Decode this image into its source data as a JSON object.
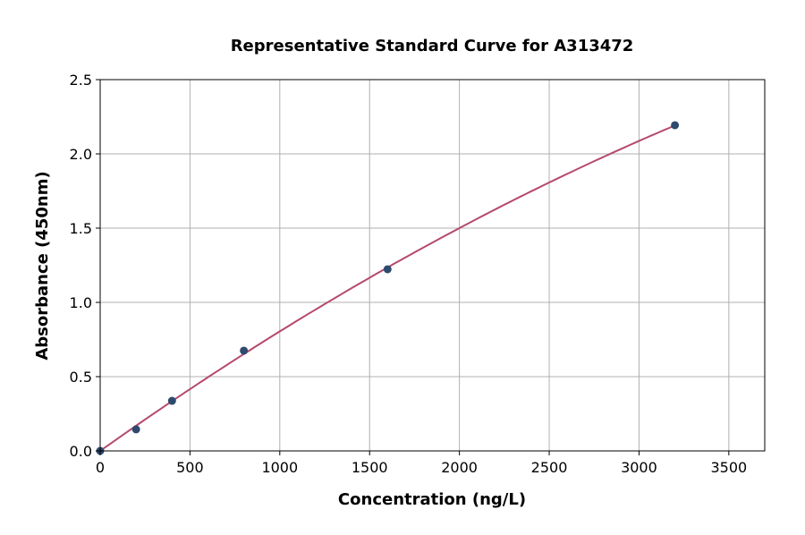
{
  "chart_data": {
    "type": "scatter",
    "title": "Representative Standard Curve for A313472",
    "xlabel": "Concentration (ng/L)",
    "ylabel": "Absorbance (450nm)",
    "xlim": [
      0,
      3700
    ],
    "ylim": [
      0,
      2.5
    ],
    "xticks": [
      0,
      500,
      1000,
      1500,
      2000,
      2500,
      3000,
      3500
    ],
    "yticks": [
      0.0,
      0.5,
      1.0,
      1.5,
      2.0,
      2.5
    ],
    "grid": true,
    "points": {
      "x": [
        0,
        200,
        400,
        800,
        1600,
        3200
      ],
      "y": [
        0.0,
        0.145,
        0.337,
        0.675,
        1.223,
        2.193
      ]
    },
    "fit": "quadratic curve through points",
    "colors": {
      "points": "#2e4a6e",
      "curve": "#b5496e",
      "grid": "#b0b0b0"
    }
  }
}
